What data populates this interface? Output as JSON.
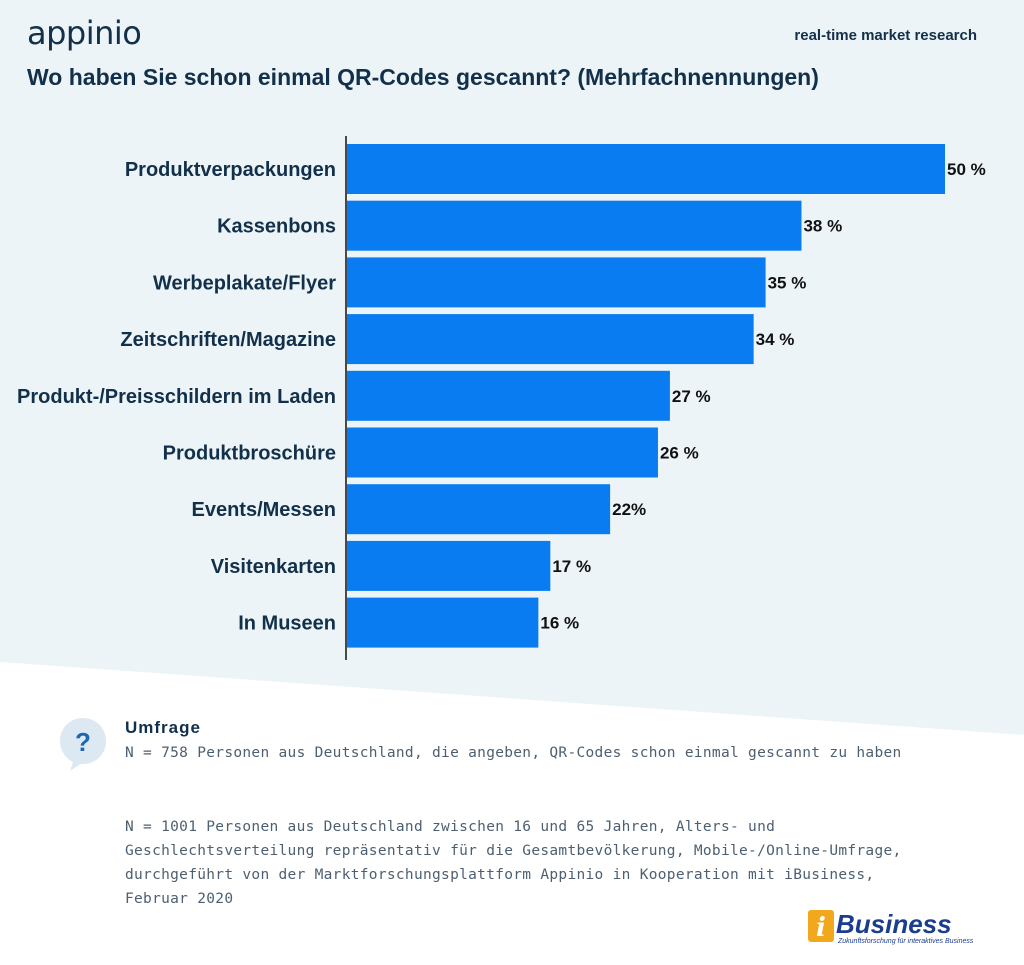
{
  "header": {
    "logo": "appinio",
    "tagline": "real-time market research",
    "title": "Wo haben Sie schon einmal QR-Codes gescannt? (Mehrfachnennungen)"
  },
  "colors": {
    "bar": "#0a7cf2",
    "text_dark": "#12304a",
    "background_top": "#edf4f7"
  },
  "chart_data": {
    "type": "bar",
    "orientation": "horizontal",
    "categories": [
      "Produktverpackungen",
      "Kassenbons",
      "Werbeplakate/Flyer",
      "Zeitschriften/Magazine",
      "Produkt-/Preisschildern im Laden",
      "Produktbroschüre",
      "Events/Messen",
      "Visitenkarten",
      "In Museen"
    ],
    "values": [
      50,
      38,
      35,
      34,
      27,
      26,
      22,
      17,
      16
    ],
    "value_labels": [
      "50 %",
      "38 %",
      "35 %",
      "34 %",
      "27 %",
      "26 %",
      "22%",
      "17 %",
      "16 %"
    ],
    "xlim": [
      0,
      50
    ],
    "grid": false
  },
  "footer": {
    "icon": "question-icon",
    "survey_title": "Umfrage",
    "note1": "N = 758 Personen aus Deutschland, die angeben, QR-Codes schon einmal gescannt zu haben",
    "note2": "N = 1001 Personen aus Deutschland zwischen 16 und 65 Jahren, Alters- und Geschlechtsverteilung repräsentativ für die Gesamtbevölkerung, Mobile-/Online-Umfrage, durchgeführt von der Marktforschungsplattform Appinio in Kooperation mit iBusiness, Februar 2020",
    "partner_logo": "iBusiness",
    "partner_tagline": "Zukunftsforschung für interaktives Business"
  }
}
